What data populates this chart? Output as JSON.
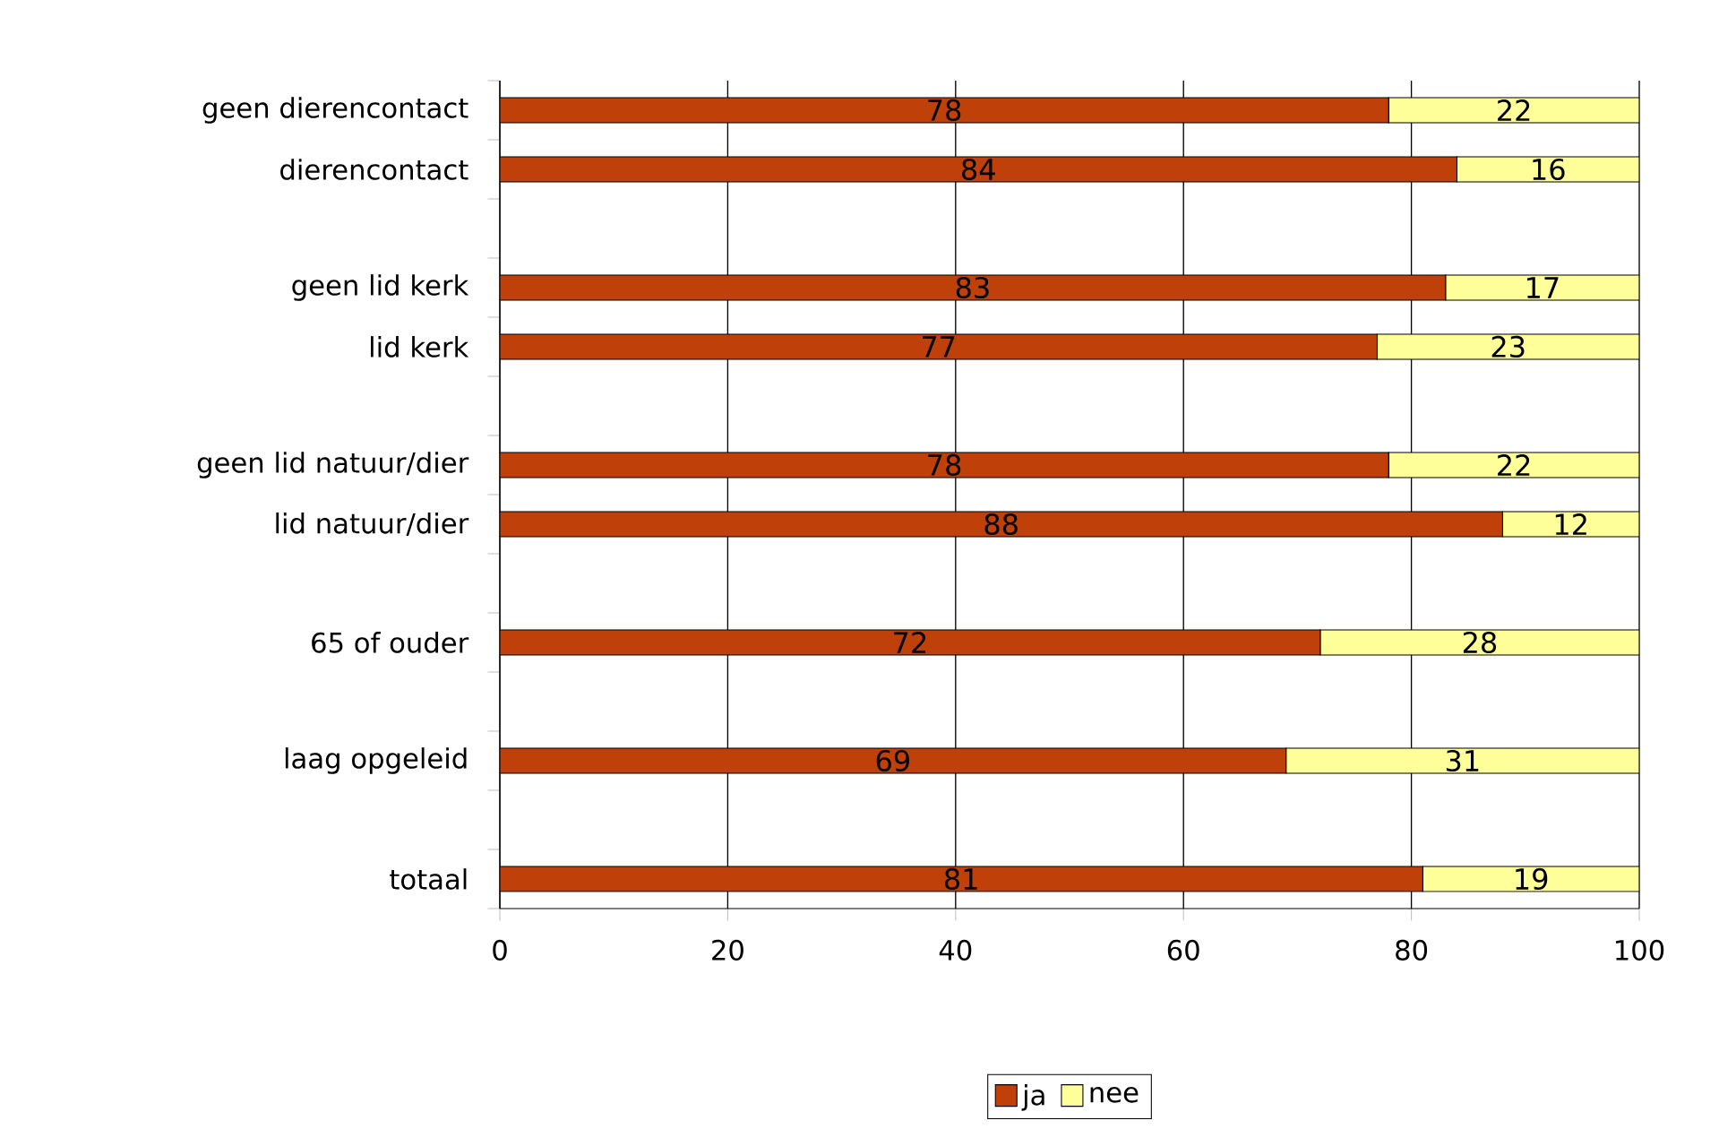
{
  "chart_data": {
    "type": "bar",
    "orientation": "horizontal",
    "stacked": true,
    "categories": [
      "geen dierencontact",
      "dierencontact",
      null,
      "geen lid kerk",
      "lid kerk",
      null,
      "geen lid natuur/dier",
      "lid natuur/dier",
      null,
      "65 of ouder",
      null,
      "laag opgeleid",
      null,
      "totaal"
    ],
    "series": [
      {
        "name": "ja",
        "color": "#c0400a",
        "values": [
          78,
          84,
          null,
          83,
          77,
          null,
          78,
          88,
          null,
          72,
          null,
          69,
          null,
          81
        ]
      },
      {
        "name": "nee",
        "color": "#ffff99",
        "values": [
          22,
          16,
          null,
          17,
          23,
          null,
          22,
          12,
          null,
          28,
          null,
          31,
          null,
          19
        ]
      }
    ],
    "xlim": [
      0,
      100
    ],
    "xticks": [
      0,
      20,
      40,
      60,
      80,
      100
    ],
    "grid": "x",
    "legend": "bottom",
    "data_labels": true
  }
}
